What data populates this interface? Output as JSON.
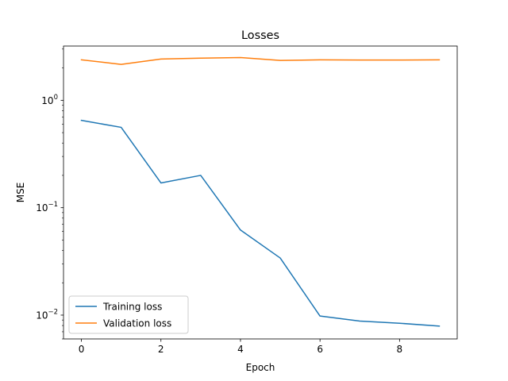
{
  "chart_data": {
    "type": "line",
    "title": "Losses",
    "xlabel": "Epoch",
    "ylabel": "MSE",
    "yscale": "log",
    "xlim": [
      -0.45,
      9.45
    ],
    "ylim": [
      0.006,
      3.2
    ],
    "x_ticks": [
      "0",
      "2",
      "4",
      "6",
      "8"
    ],
    "y_ticks": [
      {
        "value": 1,
        "base": "10",
        "exp": "0"
      },
      {
        "value": 0.1,
        "base": "10",
        "exp": "−1"
      },
      {
        "value": 0.01,
        "base": "10",
        "exp": "−2"
      }
    ],
    "grid": false,
    "legend_position": "lower-left",
    "x": [
      0,
      1,
      2,
      3,
      4,
      5,
      6,
      7,
      8,
      9
    ],
    "series": [
      {
        "name": "Training loss",
        "color": "#1f77b4",
        "values": [
          0.65,
          0.56,
          0.17,
          0.2,
          0.062,
          0.034,
          0.0098,
          0.0088,
          0.0084,
          0.0079
        ]
      },
      {
        "name": "Validation loss",
        "color": "#ff7f0e",
        "values": [
          2.38,
          2.16,
          2.42,
          2.47,
          2.5,
          2.35,
          2.38,
          2.37,
          2.37,
          2.38
        ]
      }
    ]
  }
}
